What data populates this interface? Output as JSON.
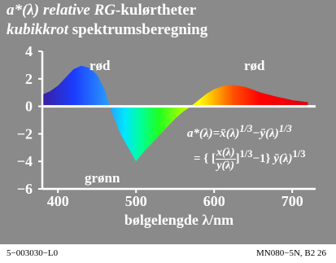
{
  "title_line1": "a*(λ) relative RG-kulørtheter",
  "title_line1_parts": {
    "a": "a*(λ) relative ",
    "b": "RG",
    "c": "-kulørtheter"
  },
  "title_line2_parts": {
    "a": "kubikkrot",
    "b": " spektrumsberegning"
  },
  "labels": {
    "red_left": "rød",
    "red_right": "rød",
    "green": "grønn"
  },
  "formula": {
    "line1": "a*(λ)=x̄(λ)^1/3−ȳ(λ)^1/3",
    "l1_a": "a*(λ)=",
    "l1_b": "x̄",
    "l1_c": "(λ)",
    "l1_d": "1/3",
    "l1_e": "−",
    "l1_f": "ȳ",
    "l1_g": "(λ)",
    "l1_h": "1/3",
    "l2_open": "= { [",
    "l2_num": "x(λ)",
    "l2_den": "y(λ)",
    "l2_mid": "]",
    "l2_exp": "1/3",
    "l2_minus": "−1} ",
    "l2_ybar": "ȳ",
    "l2_lam": "(λ)",
    "l2_exp2": "1/3"
  },
  "footer": {
    "left": "5−003030−L0",
    "right": "MN080−5N, B2  26"
  },
  "chart_data": {
    "type": "area",
    "title": "a*(λ) relative RG-kulørtheter kubikkrot spektrumsberegning",
    "xlabel": "bølgelengde λ/nm",
    "ylabel": "",
    "xlim": [
      380,
      730
    ],
    "ylim": [
      -6,
      4
    ],
    "xticks": [
      400,
      500,
      600,
      700
    ],
    "yticks": [
      4,
      2,
      0,
      -2,
      -4,
      -6
    ],
    "xtick_labels": [
      "400",
      "500",
      "600",
      "700"
    ],
    "ytick_labels": [
      "4",
      "2",
      "0",
      "−2",
      "−4",
      "−6"
    ],
    "grid": false,
    "series": [
      {
        "x": [
          380,
          390,
          400,
          410,
          420,
          430,
          440,
          450,
          460,
          470,
          480,
          490,
          500,
          510,
          520,
          530,
          540,
          550,
          560,
          570,
          580,
          590,
          600,
          610,
          620,
          630,
          640,
          650,
          660,
          670,
          680,
          690,
          700,
          710,
          720
        ],
        "values": [
          0.85,
          1.1,
          1.5,
          2.1,
          2.7,
          2.95,
          2.8,
          2.3,
          1.2,
          -0.6,
          -2.0,
          -3.0,
          -4.0,
          -3.3,
          -2.7,
          -2.1,
          -1.5,
          -0.9,
          -0.4,
          0.0,
          0.45,
          0.9,
          1.25,
          1.45,
          1.55,
          1.5,
          1.4,
          1.2,
          1.0,
          0.85,
          0.7,
          0.58,
          0.45,
          0.38,
          0.3
        ]
      }
    ]
  }
}
